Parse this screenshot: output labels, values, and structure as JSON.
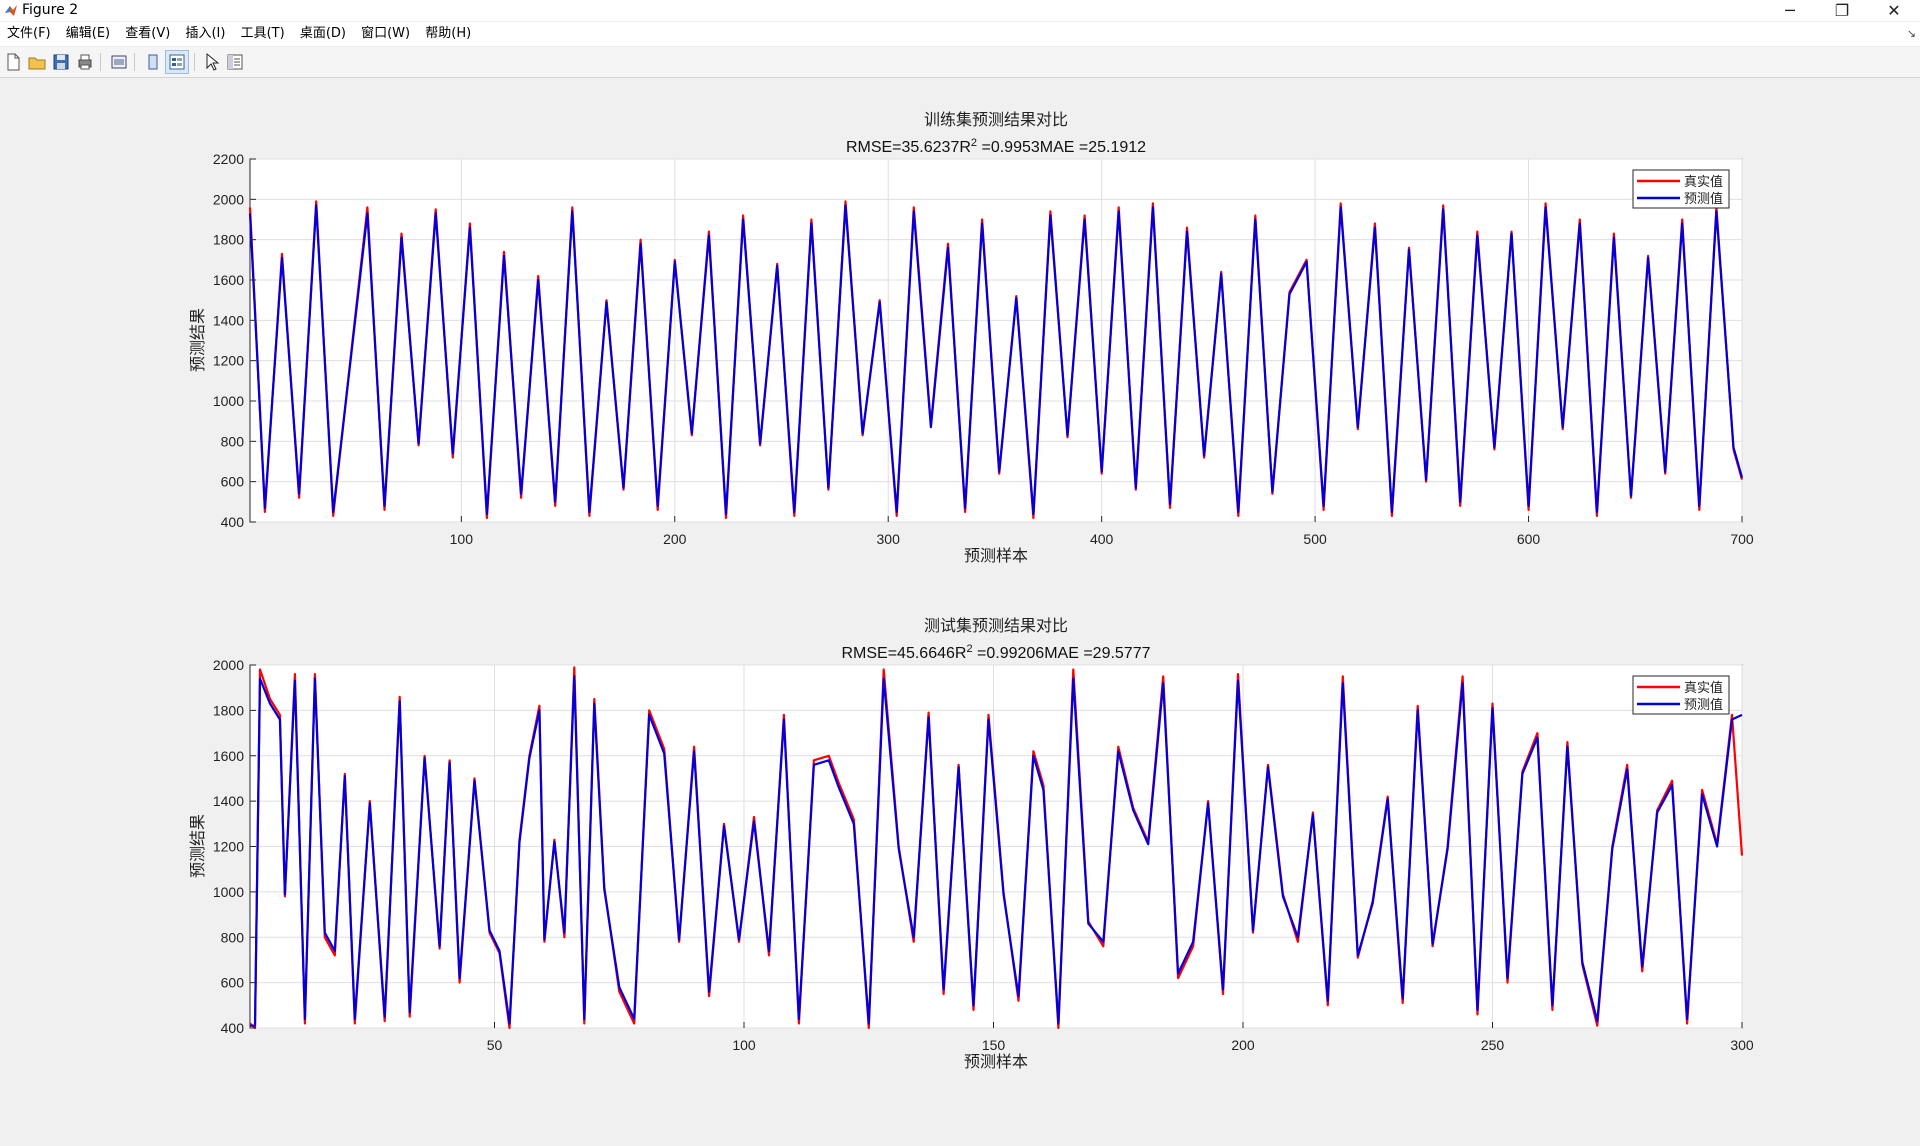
{
  "window": {
    "title": "Figure 2",
    "minimize": "─",
    "restore": "❐",
    "close": "✕"
  },
  "menu": [
    "文件(F)",
    "编辑(E)",
    "查看(V)",
    "插入(I)",
    "工具(T)",
    "桌面(D)",
    "窗口(W)",
    "帮助(H)"
  ],
  "toolbar": [
    "new-file-icon",
    "open-folder-icon",
    "save-icon",
    "print-icon",
    "print-preview-icon",
    "dock-icon",
    "property-editor-icon",
    "pointer-arrow-icon",
    "plot-browser-icon"
  ],
  "colors": {
    "true_series": "#ff0000",
    "pred_series": "#0000dd"
  },
  "chart_data": [
    {
      "type": "line",
      "title": "训练集预测结果对比",
      "subtitle": {
        "rmse": "RMSE=35.6237R",
        "sup": "2",
        "rest": " =0.9953MAE =25.1912"
      },
      "xlabel": "预测样本",
      "ylabel": "预测结果",
      "xlim": [
        1,
        700
      ],
      "ylim": [
        400,
        2200
      ],
      "xticks": [
        100,
        200,
        300,
        400,
        500,
        600,
        700
      ],
      "yticks": [
        400,
        600,
        800,
        1000,
        1200,
        1400,
        1600,
        1800,
        2000,
        2200
      ],
      "grid": true,
      "legend_position": "top-right",
      "legend": [
        "真实值",
        "预测值"
      ],
      "series": [
        {
          "name": "真实值",
          "x": [
            1,
            8,
            16,
            24,
            32,
            40,
            48,
            56,
            64,
            72,
            80,
            88,
            96,
            104,
            112,
            120,
            128,
            136,
            144,
            152,
            160,
            168,
            176,
            184,
            192,
            200,
            208,
            216,
            224,
            232,
            240,
            248,
            256,
            264,
            272,
            280,
            288,
            296,
            304,
            312,
            320,
            328,
            336,
            344,
            352,
            360,
            368,
            376,
            384,
            392,
            400,
            408,
            416,
            424,
            432,
            440,
            448,
            456,
            464,
            472,
            480,
            488,
            496,
            504,
            512,
            520,
            528,
            536,
            544,
            552,
            560,
            568,
            576,
            584,
            592,
            600,
            608,
            616,
            624,
            632,
            640,
            648,
            656,
            664,
            672,
            680,
            688,
            696,
            700
          ],
          "y": [
            1960,
            450,
            1730,
            520,
            1990,
            430,
            1200,
            1960,
            460,
            1830,
            780,
            1950,
            720,
            1880,
            420,
            1740,
            520,
            1620,
            480,
            1960,
            430,
            1500,
            560,
            1800,
            460,
            1700,
            830,
            1840,
            420,
            1920,
            780,
            1680,
            430,
            1900,
            560,
            1990,
            830,
            1500,
            430,
            1960,
            880,
            1780,
            450,
            1900,
            640,
            1520,
            420,
            1940,
            820,
            1920,
            640,
            1960,
            560,
            1980,
            470,
            1860,
            720,
            1640,
            430,
            1920,
            540,
            1540,
            1700,
            460,
            1980,
            860,
            1880,
            430,
            1760,
            600,
            1970,
            480,
            1840,
            760,
            1840,
            460,
            1980,
            860,
            1900,
            430,
            1830,
            520,
            1720,
            640,
            1900,
            460,
            1960,
            760,
            610
          ]
        },
        {
          "name": "预测值",
          "x": [
            1,
            8,
            16,
            24,
            32,
            40,
            48,
            56,
            64,
            72,
            80,
            88,
            96,
            104,
            112,
            120,
            128,
            136,
            144,
            152,
            160,
            168,
            176,
            184,
            192,
            200,
            208,
            216,
            224,
            232,
            240,
            248,
            256,
            264,
            272,
            280,
            288,
            296,
            304,
            312,
            320,
            328,
            336,
            344,
            352,
            360,
            368,
            376,
            384,
            392,
            400,
            408,
            416,
            424,
            432,
            440,
            448,
            456,
            464,
            472,
            480,
            488,
            496,
            504,
            512,
            520,
            528,
            536,
            544,
            552,
            560,
            568,
            576,
            584,
            592,
            600,
            608,
            616,
            624,
            632,
            640,
            648,
            656,
            664,
            672,
            680,
            688,
            696,
            700
          ],
          "y": [
            1930,
            470,
            1710,
            540,
            1970,
            450,
            1190,
            1930,
            480,
            1810,
            790,
            1930,
            740,
            1860,
            440,
            1720,
            540,
            1600,
            500,
            1940,
            450,
            1490,
            570,
            1780,
            480,
            1690,
            840,
            1820,
            440,
            1900,
            790,
            1670,
            450,
            1880,
            570,
            1970,
            840,
            1490,
            450,
            1940,
            870,
            1760,
            470,
            1880,
            650,
            1510,
            440,
            1920,
            830,
            1900,
            650,
            1940,
            570,
            1960,
            490,
            1840,
            730,
            1630,
            450,
            1900,
            550,
            1530,
            1690,
            480,
            1960,
            870,
            1860,
            450,
            1750,
            610,
            1950,
            500,
            1820,
            770,
            1830,
            480,
            1960,
            870,
            1880,
            450,
            1810,
            530,
            1710,
            650,
            1880,
            480,
            1940,
            770,
            620
          ]
        }
      ]
    },
    {
      "type": "line",
      "title": "测试集预测结果对比",
      "subtitle": {
        "rmse": "RMSE=45.6646R",
        "sup": "2",
        "rest": " =0.99206MAE =29.5777"
      },
      "xlabel": "预测样本",
      "ylabel": "预测结果",
      "xlim": [
        1,
        300
      ],
      "ylim": [
        400,
        2000
      ],
      "xticks": [
        50,
        100,
        150,
        200,
        250,
        300
      ],
      "yticks": [
        400,
        600,
        800,
        1000,
        1200,
        1400,
        1600,
        1800,
        2000
      ],
      "grid": true,
      "legend_position": "top-right",
      "legend": [
        "真实值",
        "预测值"
      ],
      "series": [
        {
          "name": "真实值",
          "x": [
            1,
            2,
            3,
            5,
            7,
            8,
            10,
            12,
            14,
            16,
            18,
            20,
            22,
            25,
            28,
            31,
            33,
            36,
            39,
            41,
            43,
            46,
            49,
            51,
            53,
            55,
            57,
            59,
            60,
            62,
            64,
            66,
            68,
            70,
            72,
            75,
            78,
            81,
            84,
            87,
            90,
            93,
            96,
            99,
            102,
            105,
            108,
            111,
            114,
            117,
            119,
            122,
            125,
            128,
            131,
            134,
            137,
            140,
            143,
            146,
            149,
            152,
            155,
            158,
            160,
            163,
            166,
            169,
            172,
            175,
            178,
            181,
            184,
            187,
            190,
            193,
            196,
            199,
            202,
            205,
            208,
            211,
            214,
            217,
            220,
            223,
            226,
            229,
            232,
            235,
            238,
            241,
            244,
            247,
            250,
            253,
            256,
            259,
            262,
            265,
            268,
            271,
            274,
            277,
            280,
            283,
            286,
            289,
            292,
            295,
            298,
            300
          ],
          "y": [
            420,
            400,
            1980,
            1850,
            1780,
            980,
            1960,
            420,
            1960,
            800,
            720,
            1520,
            420,
            1400,
            430,
            1860,
            450,
            1600,
            750,
            1580,
            600,
            1500,
            820,
            730,
            400,
            1230,
            1600,
            1820,
            780,
            1230,
            800,
            1990,
            420,
            1850,
            1020,
            560,
            420,
            1800,
            1630,
            780,
            1640,
            540,
            1300,
            780,
            1330,
            720,
            1780,
            420,
            1580,
            1600,
            1480,
            1320,
            400,
            1980,
            1200,
            780,
            1790,
            550,
            1560,
            480,
            1780,
            1000,
            520,
            1620,
            1470,
            400,
            1980,
            870,
            760,
            1640,
            1370,
            1220,
            1950,
            620,
            760,
            1400,
            550,
            1960,
            820,
            1560,
            990,
            780,
            1350,
            500,
            1950,
            710,
            960,
            1420,
            510,
            1820,
            760,
            1200,
            1950,
            460,
            1830,
            600,
            1530,
            1700,
            480,
            1660,
            680,
            410,
            1200,
            1560,
            650,
            1360,
            1490,
            420,
            1450,
            1210,
            1780,
            1160
          ]
        },
        {
          "name": "预测值",
          "x": [
            1,
            2,
            3,
            5,
            7,
            8,
            10,
            12,
            14,
            16,
            18,
            20,
            22,
            25,
            28,
            31,
            33,
            36,
            39,
            41,
            43,
            46,
            49,
            51,
            53,
            55,
            57,
            59,
            60,
            62,
            64,
            66,
            68,
            70,
            72,
            75,
            78,
            81,
            84,
            87,
            90,
            93,
            96,
            99,
            102,
            105,
            108,
            111,
            114,
            117,
            119,
            122,
            125,
            128,
            131,
            134,
            137,
            140,
            143,
            146,
            149,
            152,
            155,
            158,
            160,
            163,
            166,
            169,
            172,
            175,
            178,
            181,
            184,
            187,
            190,
            193,
            196,
            199,
            202,
            205,
            208,
            211,
            214,
            217,
            220,
            223,
            226,
            229,
            232,
            235,
            238,
            241,
            244,
            247,
            250,
            253,
            256,
            259,
            262,
            265,
            268,
            271,
            274,
            277,
            280,
            283,
            286,
            289,
            292,
            295,
            298,
            300
          ],
          "y": [
            410,
            410,
            1940,
            1830,
            1760,
            990,
            1930,
            440,
            1940,
            820,
            740,
            1510,
            440,
            1390,
            450,
            1840,
            470,
            1590,
            760,
            1570,
            620,
            1490,
            830,
            740,
            420,
            1220,
            1590,
            1800,
            790,
            1220,
            820,
            1950,
            440,
            1830,
            1010,
            580,
            440,
            1780,
            1610,
            790,
            1620,
            560,
            1290,
            790,
            1310,
            740,
            1760,
            440,
            1560,
            1580,
            1460,
            1300,
            420,
            1940,
            1190,
            800,
            1770,
            570,
            1550,
            500,
            1760,
            990,
            540,
            1600,
            1450,
            420,
            1940,
            860,
            780,
            1620,
            1360,
            1210,
            1920,
            640,
            780,
            1390,
            570,
            1930,
            830,
            1550,
            980,
            800,
            1340,
            520,
            1920,
            720,
            950,
            1410,
            530,
            1800,
            770,
            1190,
            1920,
            480,
            1810,
            620,
            1520,
            1680,
            500,
            1640,
            690,
            430,
            1190,
            1540,
            670,
            1350,
            1470,
            440,
            1430,
            1200,
            1760,
            1780
          ]
        }
      ]
    }
  ]
}
